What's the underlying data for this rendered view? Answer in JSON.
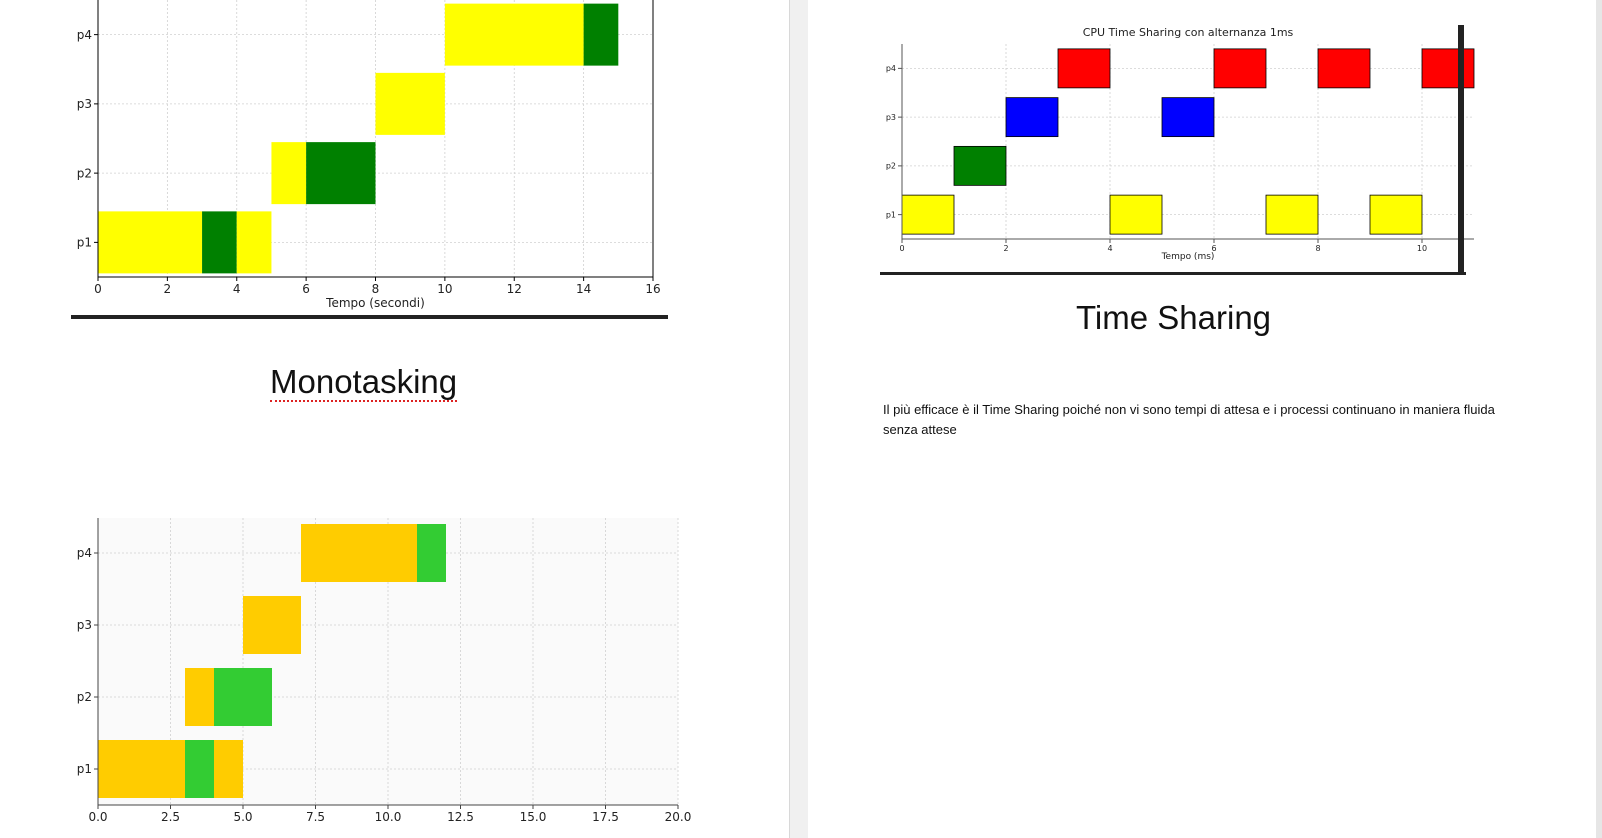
{
  "document": {
    "heading_monotasking": "Monotasking",
    "heading_timesharing": "Time Sharing",
    "paragraph": "Il più efficace è il Time Sharing poiché non vi sono tempi di attesa e i processi continuano in maniera fluida senza attese"
  },
  "chart_data": [
    {
      "type": "gantt",
      "title": "",
      "xlabel": "Tempo (secondi)",
      "ylabel": "",
      "xlim": [
        0,
        16
      ],
      "xticks": [
        0,
        2,
        4,
        6,
        8,
        10,
        12,
        14,
        16
      ],
      "categories": [
        "p1",
        "p2",
        "p3",
        "p4"
      ],
      "grid": true,
      "colors": {
        "exec": "#ffff00",
        "wait": "#008000"
      },
      "bars": [
        {
          "process": "p1",
          "start": 0,
          "end": 3,
          "kind": "exec"
        },
        {
          "process": "p1",
          "start": 3,
          "end": 4,
          "kind": "wait"
        },
        {
          "process": "p1",
          "start": 4,
          "end": 5,
          "kind": "exec"
        },
        {
          "process": "p2",
          "start": 5,
          "end": 6,
          "kind": "exec"
        },
        {
          "process": "p2",
          "start": 6,
          "end": 8,
          "kind": "wait"
        },
        {
          "process": "p3",
          "start": 8,
          "end": 10,
          "kind": "exec"
        },
        {
          "process": "p4",
          "start": 10,
          "end": 14,
          "kind": "exec"
        },
        {
          "process": "p4",
          "start": 14,
          "end": 15,
          "kind": "wait"
        }
      ]
    },
    {
      "type": "gantt",
      "title": "CPU Time Sharing con alternanza 1ms",
      "xlabel": "Tempo (ms)",
      "ylabel": "",
      "xlim": [
        0,
        11
      ],
      "xticks": [
        0,
        2,
        4,
        6,
        8,
        10
      ],
      "categories": [
        "p1",
        "p2",
        "p3",
        "p4"
      ],
      "grid": true,
      "colors": {
        "p1": "#ffff00",
        "p2": "#008000",
        "p3": "#0000ff",
        "p4": "#ff0000"
      },
      "bars": [
        {
          "process": "p1",
          "start": 0,
          "end": 1
        },
        {
          "process": "p2",
          "start": 1,
          "end": 2
        },
        {
          "process": "p3",
          "start": 2,
          "end": 3
        },
        {
          "process": "p4",
          "start": 3,
          "end": 4
        },
        {
          "process": "p1",
          "start": 4,
          "end": 5
        },
        {
          "process": "p3",
          "start": 5,
          "end": 6
        },
        {
          "process": "p4",
          "start": 6,
          "end": 7
        },
        {
          "process": "p1",
          "start": 7,
          "end": 8
        },
        {
          "process": "p4",
          "start": 8,
          "end": 9
        },
        {
          "process": "p1",
          "start": 9,
          "end": 10
        },
        {
          "process": "p4",
          "start": 10,
          "end": 11
        }
      ]
    },
    {
      "type": "gantt",
      "title": "",
      "xlabel": "",
      "ylabel": "",
      "xlim": [
        0,
        20
      ],
      "xticks": [
        "0.0",
        "2.5",
        "5.0",
        "7.5",
        "10.0",
        "12.5",
        "15.0",
        "17.5",
        "20.0"
      ],
      "categories": [
        "p1",
        "p2",
        "p3",
        "p4"
      ],
      "grid": true,
      "colors": {
        "exec": "#ffcc00",
        "wait": "#33cc33"
      },
      "bars": [
        {
          "process": "p1",
          "start": 0,
          "end": 3,
          "kind": "exec"
        },
        {
          "process": "p1",
          "start": 3,
          "end": 4,
          "kind": "wait"
        },
        {
          "process": "p1",
          "start": 4,
          "end": 5,
          "kind": "exec"
        },
        {
          "process": "p2",
          "start": 3,
          "end": 4,
          "kind": "exec"
        },
        {
          "process": "p2",
          "start": 4,
          "end": 6,
          "kind": "wait"
        },
        {
          "process": "p3",
          "start": 5,
          "end": 7,
          "kind": "exec"
        },
        {
          "process": "p4",
          "start": 7,
          "end": 11,
          "kind": "exec"
        },
        {
          "process": "p4",
          "start": 11,
          "end": 12,
          "kind": "wait"
        }
      ]
    }
  ]
}
